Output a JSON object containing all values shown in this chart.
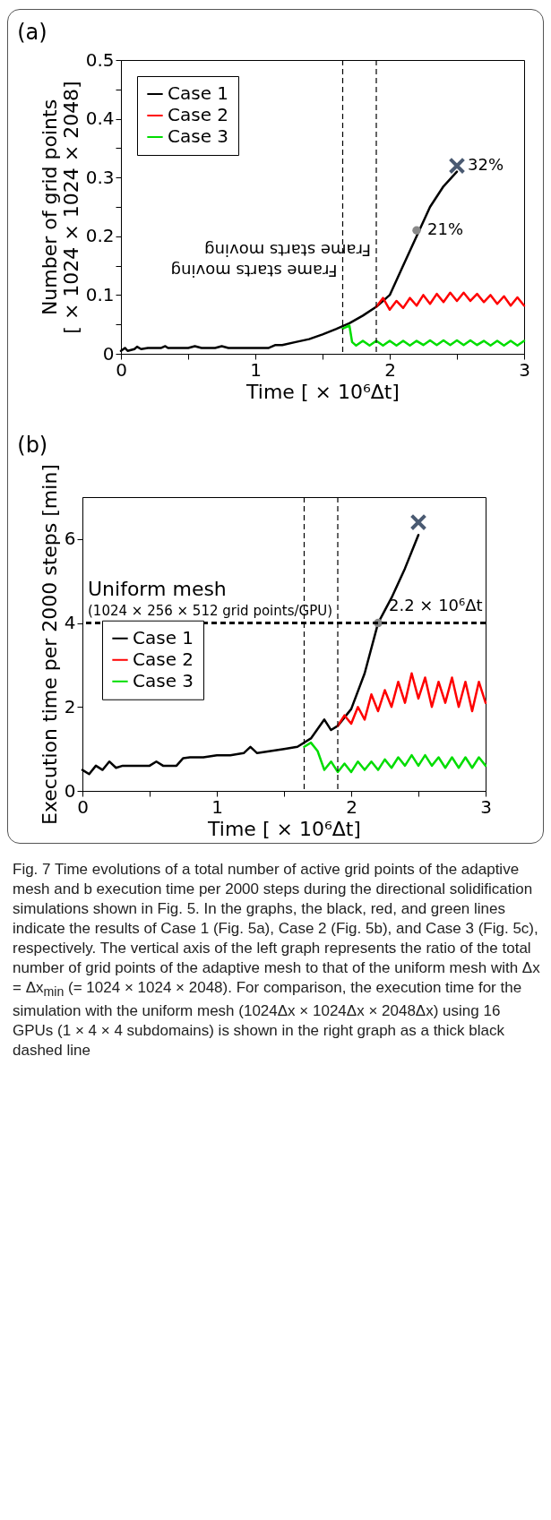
{
  "chart_data": [
    {
      "type": "line",
      "title": "(a)",
      "xlabel": "Time [ × 10⁶Δt]",
      "ylabel": "Number of grid points\n[ × 1024 × 1024 × 2048]",
      "xlim": [
        0,
        3
      ],
      "xticks": [
        0,
        {
          "value": 0.5,
          "label": null
        },
        1,
        {
          "value": 1.5,
          "label": null
        },
        2,
        {
          "value": 2.5,
          "label": null
        },
        3
      ],
      "ylim": [
        0,
        0.5
      ],
      "yticks": [
        0,
        {
          "value": 0.05,
          "label": null
        },
        0.1,
        {
          "value": 0.15,
          "label": null
        },
        0.2,
        {
          "value": 0.25,
          "label": null
        },
        0.3,
        {
          "value": 0.35,
          "label": null
        },
        0.4,
        {
          "value": 0.45,
          "label": null
        },
        0.5
      ],
      "legend": "top left",
      "series": [
        {
          "name": "Case 1",
          "color": "#000000",
          "x": [
            0,
            0.03,
            0.05,
            0.1,
            0.12,
            0.15,
            0.2,
            0.25,
            0.3,
            0.33,
            0.35,
            0.5,
            0.55,
            0.6,
            0.7,
            0.75,
            0.8,
            1.0,
            1.1,
            1.15,
            1.2,
            1.3,
            1.4,
            1.5,
            1.6,
            1.7,
            1.8,
            1.9,
            2.0,
            2.1,
            2.2,
            2.3,
            2.4,
            2.5
          ],
          "values": [
            0.005,
            0.01,
            0.005,
            0.008,
            0.012,
            0.008,
            0.01,
            0.01,
            0.01,
            0.013,
            0.01,
            0.01,
            0.013,
            0.01,
            0.01,
            0.013,
            0.01,
            0.01,
            0.01,
            0.015,
            0.015,
            0.02,
            0.025,
            0.033,
            0.042,
            0.052,
            0.065,
            0.08,
            0.1,
            0.15,
            0.2,
            0.25,
            0.285,
            0.31
          ]
        },
        {
          "name": "Case 2",
          "color": "#ff0000",
          "x": [
            1.9,
            1.95,
            2.0,
            2.05,
            2.1,
            2.15,
            2.2,
            2.25,
            2.3,
            2.35,
            2.4,
            2.45,
            2.5,
            2.55,
            2.6,
            2.65,
            2.7,
            2.75,
            2.8,
            2.85,
            2.9,
            2.95,
            3.0
          ],
          "values": [
            0.08,
            0.095,
            0.075,
            0.09,
            0.078,
            0.095,
            0.082,
            0.1,
            0.085,
            0.102,
            0.088,
            0.104,
            0.09,
            0.104,
            0.09,
            0.102,
            0.088,
            0.1,
            0.085,
            0.098,
            0.082,
            0.096,
            0.082
          ]
        },
        {
          "name": "Case 3",
          "color": "#00dd00",
          "x": [
            1.65,
            1.7,
            1.72,
            1.75,
            1.8,
            1.85,
            1.9,
            1.95,
            2.0,
            2.05,
            2.1,
            2.15,
            2.2,
            2.25,
            2.3,
            2.35,
            2.4,
            2.45,
            2.5,
            2.55,
            2.6,
            2.65,
            2.7,
            2.75,
            2.8,
            2.85,
            2.9,
            2.95,
            3.0
          ],
          "values": [
            0.043,
            0.048,
            0.02,
            0.014,
            0.022,
            0.014,
            0.022,
            0.014,
            0.022,
            0.014,
            0.022,
            0.014,
            0.022,
            0.015,
            0.023,
            0.015,
            0.023,
            0.015,
            0.023,
            0.015,
            0.023,
            0.015,
            0.022,
            0.014,
            0.022,
            0.014,
            0.022,
            0.014,
            0.022
          ]
        },
        {
          "type": "scatter",
          "marker": "cross",
          "color": "#4a5a72",
          "x": [
            2.5
          ],
          "values": [
            0.32
          ],
          "value_labels": [
            "32%"
          ]
        },
        {
          "type": "scatter",
          "marker": "circle",
          "color": "#888888",
          "x": [
            2.2
          ],
          "values": [
            0.21
          ],
          "value_labels": [
            "21%"
          ]
        }
      ],
      "ref_lines": [
        {
          "axis": "x",
          "value": 1.65,
          "label": "Frame starts  moving",
          "color": "#000000",
          "line_style": "dashed"
        },
        {
          "axis": "x",
          "value": 1.9,
          "label": "Frame starts  moving",
          "color": "#000000",
          "line_style": "dashed"
        }
      ],
      "annotations": [
        "Fig. 7  Time evolutions of a total number of active grid points of the adaptive mesh and b execution time per 2000 steps during the directional solidification simulations shown in Fig. 5. In the graphs, the black, red, and green lines indicate the results of Case 1 (Fig. 5a), Case 2 (Fig. 5b), and Case 3 (Fig. 5c), respectively. The vertical axis of the left graph represents the ratio of the total number of grid points of the adaptive mesh to that of the uniform mesh with Δx = Δx$_{min}$ (= 1024 × 1024 × 2048). For comparison, the execution time for the simulation with the uniform mesh (1024Δx × 1024Δx × 2048Δx) using 16 GPUs (1 × 4 × 4 subdomains) is shown in the right graph as a thick black dashed line"
      ]
    },
    {
      "type": "line",
      "title": "(b)",
      "xlabel": "Time [ × 10⁶Δt]",
      "ylabel": "Execution time per 2000 steps [min]",
      "xlim": [
        0,
        3
      ],
      "xticks": [
        0,
        {
          "value": 0.5,
          "label": null
        },
        1,
        {
          "value": 1.5,
          "label": null
        },
        2,
        {
          "value": 2.5,
          "label": null
        },
        3
      ],
      "ylim": [
        0,
        7
      ],
      "yticks": [
        0,
        2,
        4,
        6
      ],
      "legend": "left",
      "series": [
        {
          "name": "Case 1",
          "color": "#000000",
          "x": [
            0,
            0.05,
            0.1,
            0.15,
            0.2,
            0.25,
            0.3,
            0.4,
            0.5,
            0.55,
            0.6,
            0.7,
            0.75,
            0.8,
            0.9,
            1.0,
            1.1,
            1.2,
            1.25,
            1.3,
            1.4,
            1.5,
            1.6,
            1.7,
            1.8,
            1.85,
            1.9,
            2.0,
            2.1,
            2.2,
            2.3,
            2.4,
            2.5
          ],
          "values": [
            0.5,
            0.4,
            0.6,
            0.5,
            0.7,
            0.55,
            0.6,
            0.6,
            0.6,
            0.7,
            0.6,
            0.6,
            0.78,
            0.8,
            0.8,
            0.85,
            0.85,
            0.9,
            1.05,
            0.9,
            0.95,
            1.0,
            1.05,
            1.25,
            1.7,
            1.45,
            1.55,
            1.95,
            2.8,
            4.0,
            4.6,
            5.3,
            6.1
          ]
        },
        {
          "name": "Case 2",
          "color": "#ff0000",
          "x": [
            1.9,
            1.95,
            2.0,
            2.05,
            2.1,
            2.15,
            2.2,
            2.25,
            2.3,
            2.35,
            2.4,
            2.45,
            2.5,
            2.55,
            2.6,
            2.65,
            2.7,
            2.75,
            2.8,
            2.85,
            2.9,
            2.95,
            3.0
          ],
          "values": [
            1.55,
            1.8,
            1.6,
            2.0,
            1.7,
            2.3,
            1.9,
            2.4,
            2.0,
            2.6,
            2.1,
            2.8,
            2.2,
            2.7,
            2.0,
            2.6,
            2.1,
            2.7,
            2.0,
            2.6,
            1.9,
            2.6,
            2.1
          ]
        },
        {
          "name": "Case 3",
          "color": "#00dd00",
          "x": [
            1.65,
            1.7,
            1.75,
            1.8,
            1.85,
            1.9,
            1.95,
            2.0,
            2.05,
            2.1,
            2.15,
            2.2,
            2.25,
            2.3,
            2.35,
            2.4,
            2.45,
            2.5,
            2.55,
            2.6,
            2.65,
            2.7,
            2.75,
            2.8,
            2.85,
            2.9,
            2.95,
            3.0
          ],
          "values": [
            1.05,
            1.15,
            0.95,
            0.5,
            0.7,
            0.45,
            0.65,
            0.45,
            0.7,
            0.5,
            0.7,
            0.5,
            0.75,
            0.55,
            0.8,
            0.6,
            0.85,
            0.6,
            0.85,
            0.6,
            0.8,
            0.55,
            0.8,
            0.55,
            0.8,
            0.55,
            0.8,
            0.6
          ]
        },
        {
          "type": "scatter",
          "marker": "cross",
          "color": "#4a5a72",
          "x": [
            2.5
          ],
          "values": [
            6.4
          ]
        },
        {
          "type": "scatter",
          "marker": "circle",
          "color": "#888888",
          "x": [
            2.2
          ],
          "values": [
            4.0
          ]
        }
      ],
      "ref_lines": [
        {
          "axis": "y",
          "value": 4,
          "label": "Uniform mesh\n(1024 × 256 × 512 grid points/GPU)",
          "color": "#000000",
          "line_style": "dashed"
        },
        {
          "axis": "x",
          "value": 1.65,
          "color": "#000000",
          "line_style": "dashed"
        },
        {
          "axis": "x",
          "value": 1.9,
          "color": "#000000",
          "line_style": "dashed"
        }
      ],
      "annotations": [
        {
          "text": "2.2 × 10⁶Δt",
          "x": 2.2,
          "y": 4.0
        }
      ]
    }
  ]
}
